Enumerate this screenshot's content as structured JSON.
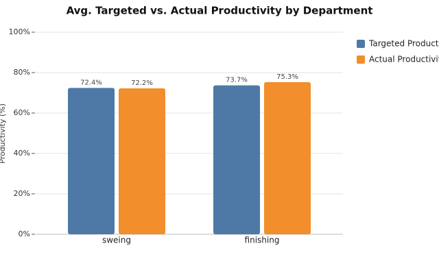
{
  "chart_data": {
    "type": "bar",
    "title": "Avg. Targeted vs. Actual Productivity by Department",
    "y_label": "Productivity (%)",
    "categories": [
      "sweing",
      "finishing"
    ],
    "series": [
      {
        "name": "Targeted Productivity",
        "color": "#4e79a7",
        "values": [
          72.4,
          73.7
        ],
        "value_labels": [
          "72.4%",
          "73.7%"
        ]
      },
      {
        "name": "Actual Productivity",
        "color": "#f28e2b",
        "values": [
          72.2,
          75.3
        ],
        "value_labels": [
          "72.2%",
          "75.3%"
        ]
      }
    ],
    "ylim": [
      0,
      100
    ],
    "yticks": [
      {
        "value": 0,
        "label": "0%"
      },
      {
        "value": 20,
        "label": "20%"
      },
      {
        "value": 40,
        "label": "40%"
      },
      {
        "value": 60,
        "label": "60%"
      },
      {
        "value": 80,
        "label": "80%"
      },
      {
        "value": 100,
        "label": "100%"
      }
    ],
    "grid": true,
    "legend": "right"
  }
}
